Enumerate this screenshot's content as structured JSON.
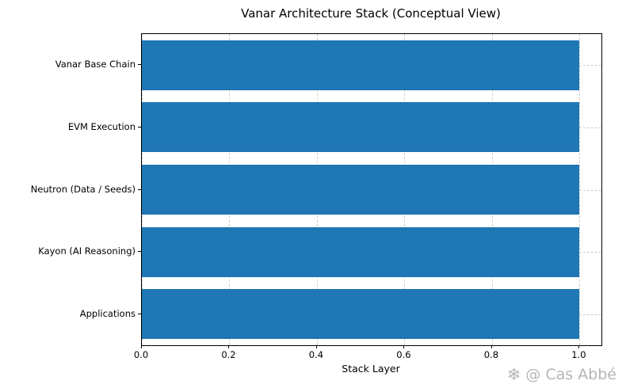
{
  "chart_data": {
    "type": "bar",
    "orientation": "horizontal",
    "title": "Vanar Architecture Stack (Conceptual View)",
    "categories": [
      "Vanar Base Chain",
      "EVM Execution",
      "Neutron (Data / Seeds)",
      "Kayon (AI Reasoning)",
      "Applications"
    ],
    "values": [
      1.0,
      1.0,
      1.0,
      1.0,
      1.0
    ],
    "xlabel": "Stack Layer",
    "ylabel": "",
    "xlim": [
      0.0,
      1.05
    ],
    "xticks": [
      0.0,
      0.2,
      0.4,
      0.6,
      0.8,
      1.0
    ],
    "xtick_labels": [
      "0.0",
      "0.2",
      "0.4",
      "0.6",
      "0.8",
      "1.0"
    ],
    "grid": true,
    "grid_style": "dashed",
    "legend": "none",
    "bar_color": "#1f77b4"
  },
  "watermark": {
    "icon": "❄",
    "text": "@ Cas Abbé"
  }
}
